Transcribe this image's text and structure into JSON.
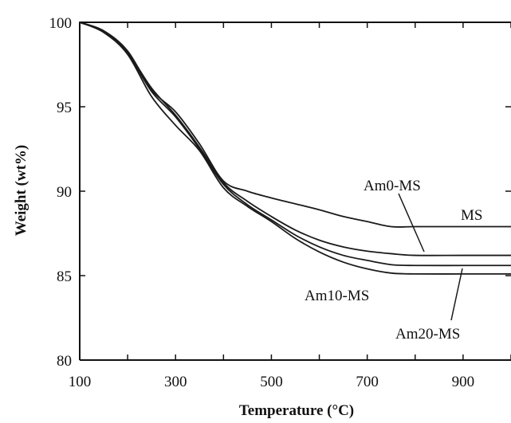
{
  "chart_data": {
    "type": "line",
    "xlabel": "Temperature (°C)",
    "ylabel": "Weight (wt%)",
    "xlim": [
      100,
      1000
    ],
    "ylim": [
      80,
      100
    ],
    "xticks": [
      "100",
      "300",
      "500",
      "700",
      "900"
    ],
    "yticks": [
      "80",
      "85",
      "90",
      "95",
      "100"
    ],
    "grid": false,
    "series": [
      {
        "name": "MS",
        "x": [
          100,
          150,
          200,
          250,
          300,
          350,
          400,
          450,
          500,
          550,
          600,
          650,
          700,
          750,
          800,
          900,
          1000
        ],
        "y": [
          100,
          99.5,
          98.3,
          96.0,
          94.7,
          92.8,
          90.6,
          90.0,
          89.6,
          89.25,
          88.9,
          88.5,
          88.2,
          87.9,
          87.9,
          87.9,
          87.9
        ]
      },
      {
        "name": "Am0-MS",
        "x": [
          100,
          150,
          200,
          250,
          300,
          350,
          400,
          450,
          500,
          550,
          600,
          650,
          700,
          750,
          800,
          900,
          1000
        ],
        "y": [
          100,
          99.45,
          98.2,
          96.1,
          94.5,
          92.6,
          90.5,
          89.4,
          88.5,
          87.7,
          87.1,
          86.7,
          86.45,
          86.3,
          86.2,
          86.2,
          86.2
        ]
      },
      {
        "name": "Am10-MS",
        "x": [
          100,
          150,
          200,
          250,
          300,
          350,
          400,
          450,
          500,
          550,
          600,
          650,
          700,
          750,
          800,
          900,
          1000
        ],
        "y": [
          100,
          99.45,
          98.15,
          95.9,
          94.4,
          92.5,
          90.4,
          89.2,
          88.3,
          87.4,
          86.7,
          86.2,
          85.9,
          85.65,
          85.6,
          85.6,
          85.6
        ]
      },
      {
        "name": "Am20-MS",
        "x": [
          100,
          150,
          200,
          250,
          300,
          350,
          400,
          450,
          500,
          550,
          600,
          650,
          700,
          750,
          800,
          900,
          1000
        ],
        "y": [
          100,
          99.4,
          98.1,
          95.6,
          93.9,
          92.4,
          90.2,
          89.1,
          88.2,
          87.2,
          86.4,
          85.8,
          85.4,
          85.15,
          85.1,
          85.1,
          85.1
        ]
      }
    ],
    "annotations": [
      {
        "text": "MS",
        "series": "MS"
      },
      {
        "text": "Am0-MS",
        "series": "Am0-MS"
      },
      {
        "text": "Am10-MS",
        "series": "Am10-MS"
      },
      {
        "text": "Am20-MS",
        "series": "Am20-MS"
      }
    ]
  }
}
